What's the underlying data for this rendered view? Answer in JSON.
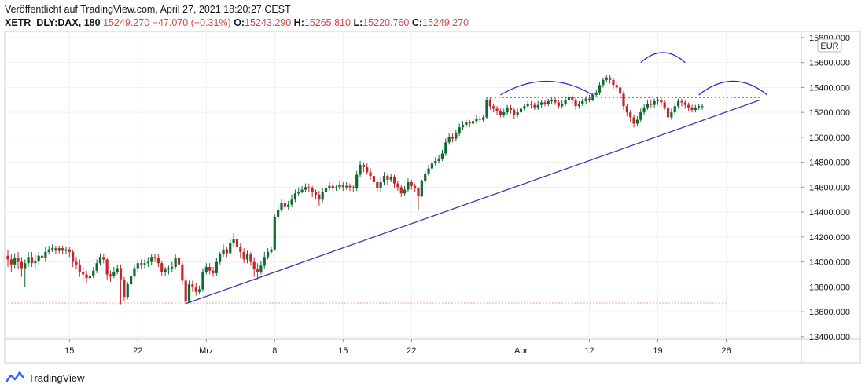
{
  "header": {
    "published": "Veröffentlicht auf TradingView.com, April 27, 2021 18:20:27 CEST",
    "symbol": "XETR_DLY:DAX, 180",
    "last": "15249.270",
    "change": "−47.070 (−0.31%)",
    "o_label": "O:",
    "o_value": "15243.290",
    "h_label": "H:",
    "h_value": "15265.810",
    "l_label": "L:",
    "l_value": "15220.760",
    "c_label": "C:",
    "c_value": "15249.270"
  },
  "footer": {
    "brand": "TradingView"
  },
  "colors": {
    "up": "#26a69a",
    "up_dark": "#0d6b2f",
    "down": "#c2272d",
    "trendline": "#3b3bb0",
    "arc": "#2a2ad0",
    "resistance": "#e03030",
    "baseline": "#e9a0a0",
    "grid": "#eef0f3"
  },
  "chart_data": {
    "type": "candlestick",
    "currency": "EUR",
    "ylim": [
      13380,
      15850
    ],
    "y_ticks": [
      13400,
      13600,
      13800,
      14000,
      14200,
      14400,
      14600,
      14800,
      15000,
      15200,
      15400,
      15600,
      15800
    ],
    "y_tick_labels": [
      "13400.000",
      "13600.000",
      "13800.000",
      "14000.000",
      "14200.000",
      "14400.000",
      "14600.000",
      "14800.000",
      "15000.000",
      "15200.000",
      "15400.000",
      "15600.000",
      "15800.000"
    ],
    "x_ticks": [
      {
        "label": "15",
        "bar": 18
      },
      {
        "label": "22",
        "bar": 38
      },
      {
        "label": "Mrz",
        "bar": 58
      },
      {
        "label": "8",
        "bar": 78
      },
      {
        "label": "15",
        "bar": 98
      },
      {
        "label": "22",
        "bar": 118
      },
      {
        "label": "Apr",
        "bar": 150
      },
      {
        "label": "12",
        "bar": 170
      },
      {
        "label": "19",
        "bar": 190
      },
      {
        "label": "26",
        "bar": 210
      }
    ],
    "last_price_label": "15249.270",
    "candles": [
      [
        14050,
        14020,
        14100,
        13960
      ],
      [
        14020,
        13980,
        14060,
        13920
      ],
      [
        13980,
        14030,
        14070,
        13950
      ],
      [
        14030,
        14000,
        14080,
        13940
      ],
      [
        14000,
        13950,
        14040,
        13880
      ],
      [
        13950,
        13990,
        14020,
        13800
      ],
      [
        13990,
        14040,
        14080,
        13960
      ],
      [
        14040,
        13990,
        14080,
        13960
      ],
      [
        13990,
        14010,
        14060,
        13940
      ],
      [
        14010,
        14050,
        14080,
        13980
      ],
      [
        14050,
        14030,
        14100,
        13990
      ],
      [
        14030,
        14080,
        14120,
        14000
      ],
      [
        14080,
        14100,
        14130,
        14060
      ],
      [
        14100,
        14110,
        14140,
        14080
      ],
      [
        14110,
        14090,
        14130,
        14060
      ],
      [
        14090,
        14110,
        14130,
        14070
      ],
      [
        14110,
        14090,
        14130,
        14060
      ],
      [
        14090,
        14100,
        14120,
        14060
      ],
      [
        14100,
        14080,
        14120,
        14040
      ],
      [
        14080,
        14000,
        14100,
        13960
      ],
      [
        14000,
        13980,
        14040,
        13940
      ],
      [
        13980,
        13920,
        14020,
        13880
      ],
      [
        13920,
        13900,
        13960,
        13860
      ],
      [
        13900,
        13870,
        13930,
        13830
      ],
      [
        13870,
        13890,
        13930,
        13850
      ],
      [
        13890,
        13930,
        13960,
        13870
      ],
      [
        13930,
        13990,
        14020,
        13910
      ],
      [
        13990,
        14040,
        14070,
        13970
      ],
      [
        14040,
        14020,
        14060,
        13990
      ],
      [
        14020,
        13900,
        14030,
        13860
      ],
      [
        13900,
        13890,
        13930,
        13840
      ],
      [
        13890,
        13920,
        13960,
        13870
      ],
      [
        13920,
        13950,
        13980,
        13900
      ],
      [
        13950,
        13860,
        13980,
        13660
      ],
      [
        13860,
        13720,
        13880,
        13690
      ],
      [
        13720,
        13820,
        13840,
        13700
      ],
      [
        13820,
        13890,
        13930,
        13800
      ],
      [
        13890,
        13950,
        13980,
        13870
      ],
      [
        13950,
        13990,
        14020,
        13920
      ],
      [
        13990,
        13980,
        14020,
        13940
      ],
      [
        13980,
        13990,
        14020,
        13950
      ],
      [
        13990,
        14000,
        14040,
        13960
      ],
      [
        14000,
        14040,
        14060,
        13970
      ],
      [
        14040,
        14030,
        14060,
        14000
      ],
      [
        14030,
        13990,
        14060,
        13960
      ],
      [
        13990,
        13920,
        14010,
        13890
      ],
      [
        13920,
        13940,
        13960,
        13890
      ],
      [
        13940,
        13950,
        13970,
        13900
      ],
      [
        13950,
        13960,
        14000,
        13920
      ],
      [
        13960,
        14030,
        14060,
        13940
      ],
      [
        14030,
        13980,
        14060,
        13960
      ],
      [
        13980,
        13850,
        14000,
        13820
      ],
      [
        13850,
        13680,
        13880,
        13660
      ],
      [
        13680,
        13820,
        13850,
        13670
      ],
      [
        13820,
        13800,
        13850,
        13760
      ],
      [
        13800,
        13760,
        13830,
        13730
      ],
      [
        13760,
        13780,
        13810,
        13740
      ],
      [
        13780,
        13920,
        13950,
        13760
      ],
      [
        13920,
        13960,
        13990,
        13900
      ],
      [
        13960,
        13930,
        13990,
        13900
      ],
      [
        13930,
        13910,
        13960,
        13880
      ],
      [
        13910,
        14000,
        14030,
        13890
      ],
      [
        14000,
        14060,
        14080,
        13980
      ],
      [
        14060,
        14100,
        14140,
        14040
      ],
      [
        14100,
        14070,
        14120,
        14040
      ],
      [
        14070,
        14150,
        14190,
        14060
      ],
      [
        14150,
        14180,
        14230,
        14120
      ],
      [
        14180,
        14120,
        14210,
        14080
      ],
      [
        14120,
        14080,
        14150,
        14030
      ],
      [
        14080,
        14020,
        14110,
        13990
      ],
      [
        14020,
        14060,
        14090,
        13990
      ],
      [
        14060,
        14000,
        14080,
        13970
      ],
      [
        14000,
        13940,
        14040,
        13880
      ],
      [
        13940,
        13920,
        13990,
        13860
      ],
      [
        13920,
        13970,
        14010,
        13900
      ],
      [
        13970,
        14040,
        14080,
        13950
      ],
      [
        14040,
        14080,
        14110,
        14020
      ],
      [
        14080,
        14100,
        14120,
        14060
      ],
      [
        14100,
        14360,
        14380,
        14090
      ],
      [
        14360,
        14420,
        14460,
        14340
      ],
      [
        14420,
        14470,
        14500,
        14400
      ],
      [
        14470,
        14440,
        14500,
        14410
      ],
      [
        14440,
        14460,
        14490,
        14420
      ],
      [
        14460,
        14500,
        14540,
        14440
      ],
      [
        14500,
        14550,
        14580,
        14480
      ],
      [
        14550,
        14560,
        14600,
        14530
      ],
      [
        14560,
        14580,
        14610,
        14550
      ],
      [
        14580,
        14600,
        14630,
        14560
      ],
      [
        14600,
        14590,
        14630,
        14560
      ],
      [
        14590,
        14560,
        14610,
        14520
      ],
      [
        14560,
        14540,
        14580,
        14500
      ],
      [
        14540,
        14500,
        14570,
        14450
      ],
      [
        14500,
        14560,
        14590,
        14480
      ],
      [
        14560,
        14590,
        14620,
        14540
      ],
      [
        14590,
        14610,
        14640,
        14570
      ],
      [
        14610,
        14590,
        14630,
        14560
      ],
      [
        14590,
        14600,
        14620,
        14570
      ],
      [
        14600,
        14620,
        14650,
        14580
      ],
      [
        14620,
        14600,
        14640,
        14570
      ],
      [
        14600,
        14610,
        14640,
        14580
      ],
      [
        14610,
        14600,
        14630,
        14570
      ],
      [
        14600,
        14590,
        14620,
        14560
      ],
      [
        14590,
        14700,
        14730,
        14570
      ],
      [
        14700,
        14780,
        14810,
        14680
      ],
      [
        14780,
        14760,
        14800,
        14720
      ],
      [
        14760,
        14720,
        14790,
        14700
      ],
      [
        14720,
        14690,
        14750,
        14660
      ],
      [
        14690,
        14640,
        14710,
        14610
      ],
      [
        14640,
        14590,
        14660,
        14560
      ],
      [
        14590,
        14640,
        14680,
        14560
      ],
      [
        14640,
        14690,
        14720,
        14620
      ],
      [
        14690,
        14660,
        14710,
        14620
      ],
      [
        14660,
        14680,
        14710,
        14640
      ],
      [
        14680,
        14630,
        14700,
        14590
      ],
      [
        14630,
        14600,
        14650,
        14570
      ],
      [
        14600,
        14550,
        14620,
        14520
      ],
      [
        14550,
        14580,
        14610,
        14530
      ],
      [
        14580,
        14640,
        14670,
        14560
      ],
      [
        14640,
        14610,
        14660,
        14580
      ],
      [
        14610,
        14590,
        14630,
        14560
      ],
      [
        14590,
        14530,
        14600,
        14420
      ],
      [
        14530,
        14650,
        14660,
        14520
      ],
      [
        14650,
        14710,
        14740,
        14630
      ],
      [
        14710,
        14750,
        14780,
        14690
      ],
      [
        14750,
        14790,
        14820,
        14730
      ],
      [
        14790,
        14810,
        14840,
        14770
      ],
      [
        14810,
        14830,
        14860,
        14790
      ],
      [
        14830,
        14870,
        14900,
        14810
      ],
      [
        14870,
        14960,
        14990,
        14850
      ],
      [
        14960,
        15000,
        15030,
        14940
      ],
      [
        15000,
        14990,
        15030,
        14960
      ],
      [
        14990,
        15030,
        15060,
        14970
      ],
      [
        15030,
        15080,
        15110,
        15010
      ],
      [
        15080,
        15100,
        15130,
        15060
      ],
      [
        15100,
        15120,
        15140,
        15080
      ],
      [
        15120,
        15110,
        15140,
        15080
      ],
      [
        15110,
        15130,
        15160,
        15090
      ],
      [
        15130,
        15150,
        15180,
        15110
      ],
      [
        15150,
        15140,
        15170,
        15120
      ],
      [
        15140,
        15160,
        15180,
        15120
      ],
      [
        15160,
        15300,
        15320,
        15150
      ],
      [
        15300,
        15250,
        15320,
        15220
      ],
      [
        15250,
        15230,
        15270,
        15200
      ],
      [
        15230,
        15210,
        15250,
        15180
      ],
      [
        15210,
        15180,
        15230,
        15160
      ],
      [
        15180,
        15200,
        15230,
        15160
      ],
      [
        15200,
        15240,
        15260,
        15180
      ],
      [
        15240,
        15220,
        15260,
        15190
      ],
      [
        15220,
        15180,
        15240,
        15150
      ],
      [
        15180,
        15200,
        15230,
        15160
      ],
      [
        15200,
        15230,
        15260,
        15190
      ],
      [
        15230,
        15250,
        15270,
        15210
      ],
      [
        15250,
        15270,
        15290,
        15230
      ],
      [
        15270,
        15260,
        15290,
        15230
      ],
      [
        15260,
        15240,
        15280,
        15220
      ],
      [
        15240,
        15260,
        15290,
        15220
      ],
      [
        15260,
        15280,
        15300,
        15240
      ],
      [
        15280,
        15270,
        15300,
        15250
      ],
      [
        15270,
        15290,
        15310,
        15250
      ],
      [
        15290,
        15300,
        15320,
        15270
      ],
      [
        15300,
        15280,
        15320,
        15260
      ],
      [
        15280,
        15250,
        15300,
        15230
      ],
      [
        15250,
        15270,
        15300,
        15230
      ],
      [
        15270,
        15300,
        15330,
        15250
      ],
      [
        15300,
        15320,
        15350,
        15280
      ],
      [
        15320,
        15300,
        15340,
        15270
      ],
      [
        15300,
        15250,
        15320,
        15220
      ],
      [
        15250,
        15270,
        15290,
        15230
      ],
      [
        15270,
        15290,
        15310,
        15250
      ],
      [
        15290,
        15310,
        15330,
        15270
      ],
      [
        15310,
        15300,
        15340,
        15280
      ],
      [
        15300,
        15340,
        15360,
        15290
      ],
      [
        15340,
        15360,
        15380,
        15320
      ],
      [
        15360,
        15420,
        15440,
        15340
      ],
      [
        15420,
        15460,
        15480,
        15400
      ],
      [
        15460,
        15480,
        15500,
        15440
      ],
      [
        15480,
        15460,
        15500,
        15430
      ],
      [
        15460,
        15420,
        15480,
        15390
      ],
      [
        15420,
        15400,
        15440,
        15370
      ],
      [
        15400,
        15350,
        15420,
        15320
      ],
      [
        15350,
        15250,
        15370,
        15220
      ],
      [
        15250,
        15200,
        15270,
        15170
      ],
      [
        15200,
        15160,
        15220,
        15120
      ],
      [
        15160,
        15110,
        15180,
        15080
      ],
      [
        15110,
        15140,
        15170,
        15090
      ],
      [
        15140,
        15200,
        15230,
        15120
      ],
      [
        15200,
        15240,
        15270,
        15180
      ],
      [
        15240,
        15270,
        15300,
        15220
      ],
      [
        15270,
        15260,
        15300,
        15240
      ],
      [
        15260,
        15290,
        15310,
        15240
      ],
      [
        15290,
        15300,
        15320,
        15260
      ],
      [
        15300,
        15280,
        15320,
        15250
      ],
      [
        15280,
        15240,
        15300,
        15220
      ],
      [
        15240,
        15160,
        15260,
        15130
      ],
      [
        15160,
        15200,
        15230,
        15140
      ],
      [
        15200,
        15250,
        15280,
        15180
      ],
      [
        15250,
        15290,
        15310,
        15230
      ],
      [
        15290,
        15280,
        15310,
        15250
      ],
      [
        15280,
        15260,
        15300,
        15230
      ],
      [
        15260,
        15240,
        15280,
        15210
      ],
      [
        15240,
        15220,
        15260,
        15200
      ],
      [
        15220,
        15240,
        15260,
        15200
      ],
      [
        15240,
        15250,
        15270,
        15220
      ],
      [
        15243,
        15249,
        15266,
        15221
      ]
    ],
    "trendline": {
      "from": {
        "bar": 52,
        "price": 13665
      },
      "to": {
        "bar": 220,
        "price": 15300
      }
    },
    "resistance": {
      "from_bar": 140,
      "to_bar": 220,
      "price": 15320
    },
    "baseline": {
      "from_bar": 0,
      "to_bar": 210,
      "price": 13670
    },
    "arcs": [
      {
        "from_bar": 144,
        "to_bar": 171,
        "base_price": 15340,
        "peak_price": 15450
      },
      {
        "from_bar": 185,
        "to_bar": 198,
        "base_price": 15600,
        "peak_price": 15680
      },
      {
        "from_bar": 202,
        "to_bar": 222,
        "base_price": 15340,
        "peak_price": 15450
      }
    ]
  }
}
